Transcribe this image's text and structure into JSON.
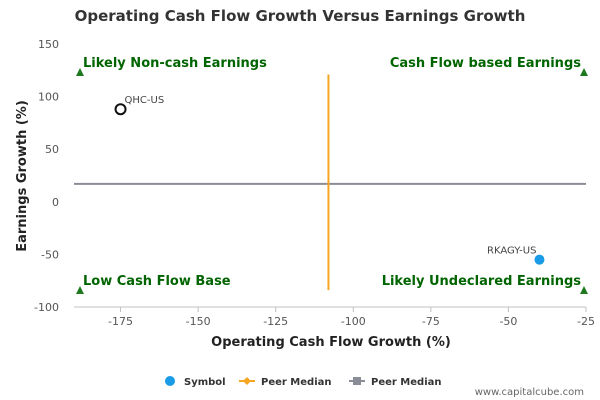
{
  "chart_data": {
    "type": "scatter",
    "title": "Operating Cash Flow Growth Versus Earnings Growth",
    "xlabel": "Operating Cash Flow Growth (%)",
    "ylabel": "Earnings Growth (%)",
    "xlim": [
      -190,
      -25
    ],
    "ylim": [
      -100,
      150
    ],
    "x_ticks": [
      -175,
      -150,
      -125,
      -100,
      -75,
      -50,
      -25
    ],
    "x_tick_labels": [
      "-175",
      "-150",
      "-125",
      "-100",
      "-75",
      "-50",
      "-25"
    ],
    "y_ticks": [
      150,
      100,
      50,
      0,
      -50,
      -100
    ],
    "y_tick_labels": [
      "150",
      "100",
      "50",
      "0",
      "-50",
      "-100"
    ],
    "grid": false,
    "points": [
      {
        "label": "QHC-US",
        "x": -175,
        "y": 88,
        "style": "hollow"
      },
      {
        "label": "RKAGY-US",
        "x": -40,
        "y": -55,
        "style": "filled"
      }
    ],
    "peer_median_x": -108,
    "peer_median_y": 17,
    "quadrants": [
      {
        "label": "Likely Non-cash Earnings",
        "position": "top-left"
      },
      {
        "label": "Cash Flow based Earnings",
        "position": "top-right"
      },
      {
        "label": "Low Cash Flow Base",
        "position": "bottom-left"
      },
      {
        "label": "Likely Undeclared Earnings",
        "position": "bottom-right"
      }
    ],
    "legend": {
      "placement": "bottom",
      "items": [
        {
          "label": "Symbol",
          "symbol": "circle",
          "color": "#1a9be8"
        },
        {
          "label": "Peer Median",
          "symbol": "diamond-line",
          "color": "#f5a623"
        },
        {
          "label": "Peer Median",
          "symbol": "square-line",
          "color": "#8a8d95"
        }
      ]
    },
    "colors": {
      "symbol": "#1a9be8",
      "peer_median_x": "#f5a623",
      "peer_median_y": "#8a8d95",
      "quadrant_text": "#006400",
      "marker": "#1f7a1f"
    }
  },
  "credit": "www.capitalcube.com"
}
